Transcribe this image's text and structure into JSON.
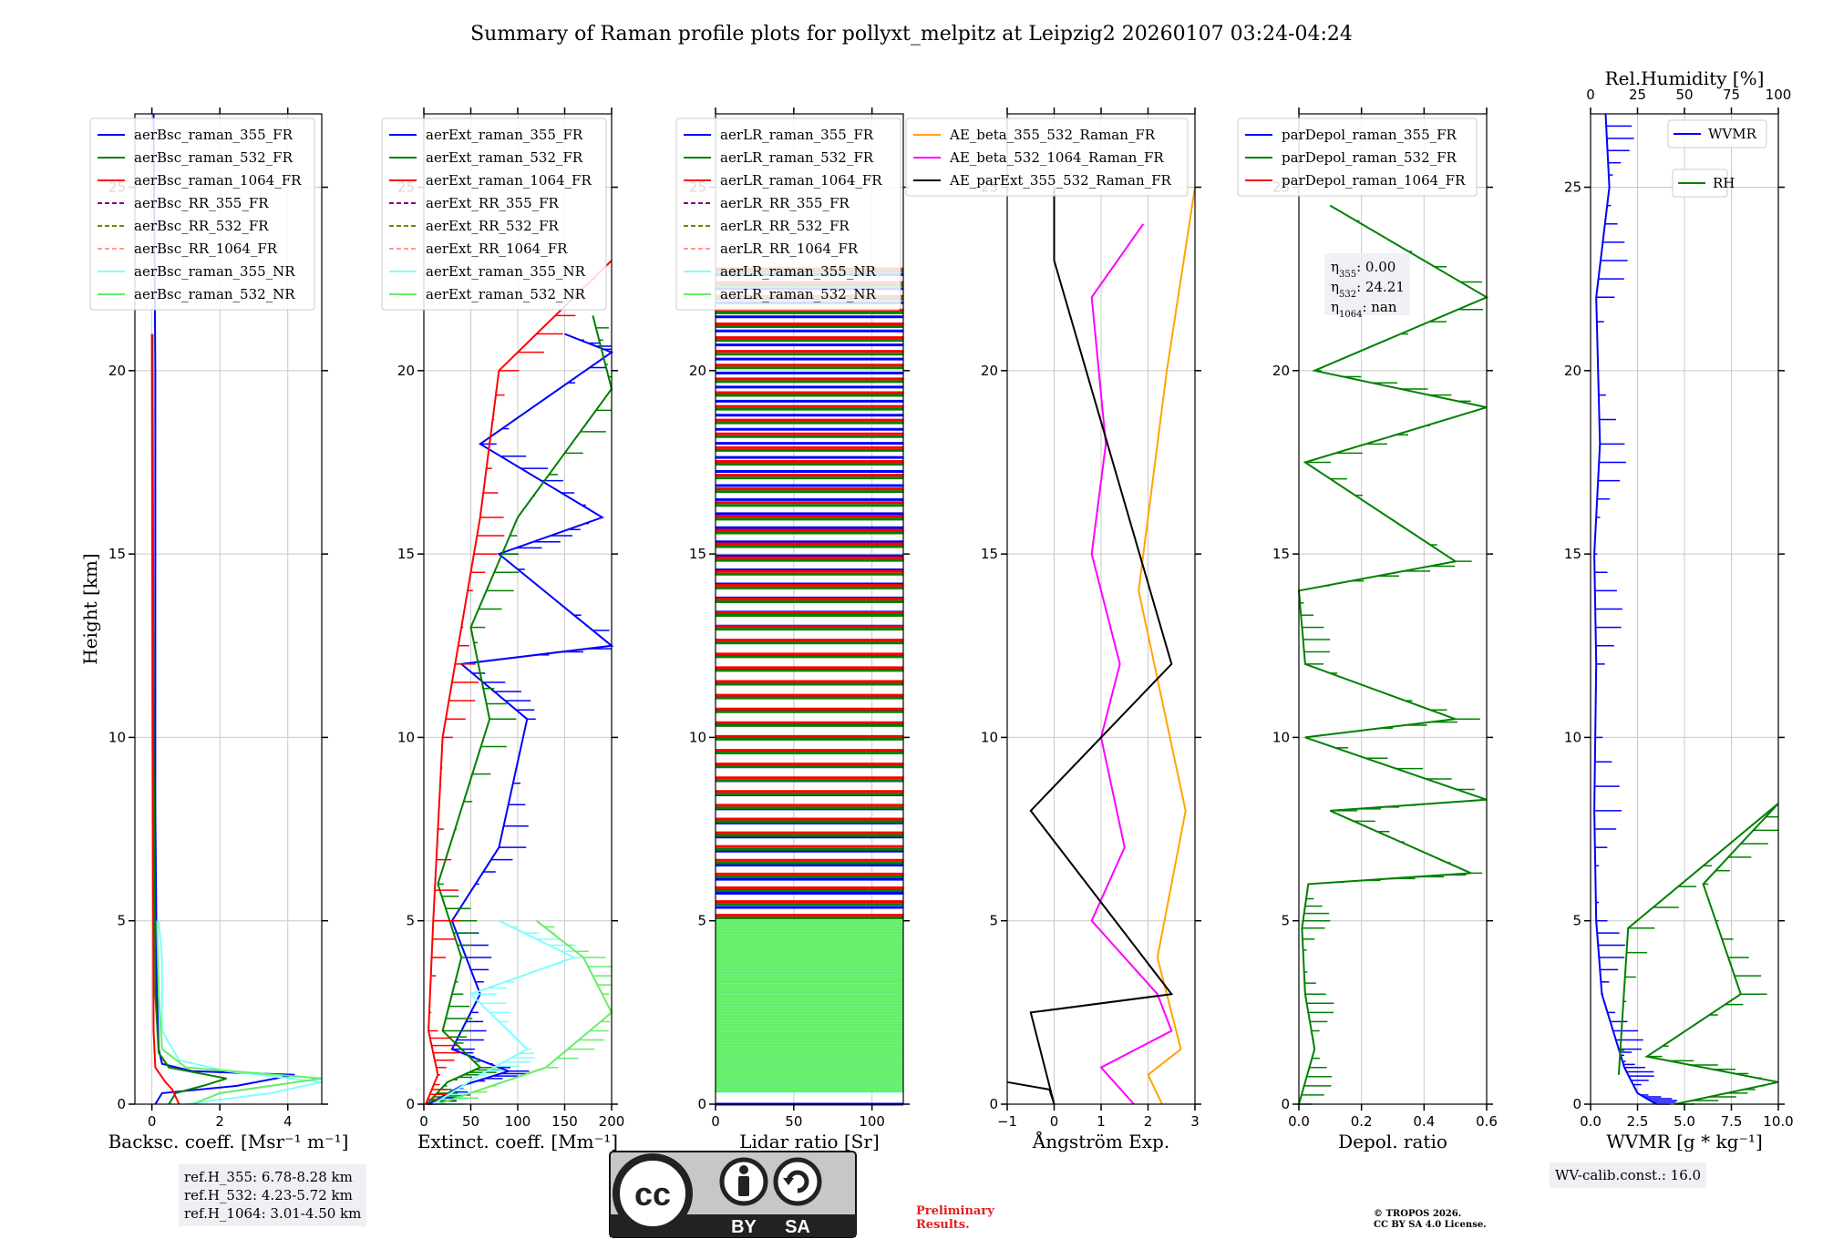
{
  "title": "Summary of Raman profile plots for pollyxt_melpitz at Leipzig2 20260107 03:24-04:24",
  "colors": {
    "blue": "#0000ff",
    "green": "#008000",
    "red": "#ff0000",
    "purple": "#800080",
    "olive": "#808000",
    "pink": "#ff9999",
    "cyan": "#7fffff",
    "lightgreen": "#66ee66",
    "orange": "#ffa500",
    "magenta": "#ff00ff",
    "black": "#000000"
  },
  "chart_data": [
    {
      "type": "line",
      "xlabel": "Backsc. coeff. [Msr⁻¹ m⁻¹]",
      "ylabel": "Height [km]",
      "xlim": [
        -0.5,
        5
      ],
      "ylim": [
        0,
        27
      ],
      "xticks": [
        "0",
        "2",
        "4"
      ],
      "xtick_values": [
        0,
        2,
        4
      ],
      "yticks": [
        "0",
        "5",
        "10",
        "15",
        "20",
        "25"
      ],
      "legend": [
        "aerBsc_raman_355_FR",
        "aerBsc_raman_532_FR",
        "aerBsc_raman_1064_FR",
        "aerBsc_RR_355_FR",
        "aerBsc_RR_532_FR",
        "aerBsc_RR_1064_FR",
        "aerBsc_raman_355_NR",
        "aerBsc_raman_532_NR"
      ],
      "series": [
        {
          "name": "aerBsc_raman_355_FR",
          "color": "blue",
          "points": [
            [
              0.1,
              0
            ],
            [
              0.3,
              0.3
            ],
            [
              2.5,
              0.5
            ],
            [
              4.2,
              0.8
            ],
            [
              1.2,
              0.9
            ],
            [
              0.3,
              1.1
            ],
            [
              0.2,
              1.5
            ],
            [
              0.15,
              3
            ],
            [
              0.1,
              8
            ],
            [
              0.1,
              20
            ],
            [
              0.05,
              27
            ]
          ]
        },
        {
          "name": "aerBsc_raman_532_FR",
          "color": "green",
          "points": [
            [
              0.5,
              0
            ],
            [
              0.7,
              0.3
            ],
            [
              1.5,
              0.5
            ],
            [
              2.2,
              0.7
            ],
            [
              0.5,
              1.0
            ],
            [
              0.2,
              1.4
            ],
            [
              0.1,
              3
            ],
            [
              0.05,
              10
            ],
            [
              0.02,
              21
            ]
          ]
        },
        {
          "name": "aerBsc_raman_1064_FR",
          "color": "red",
          "points": [
            [
              0.8,
              0
            ],
            [
              0.6,
              0.4
            ],
            [
              0.4,
              0.6
            ],
            [
              0.1,
              1.0
            ],
            [
              0.05,
              2
            ],
            [
              0.02,
              10
            ],
            [
              0.0,
              21
            ]
          ]
        },
        {
          "name": "aerBsc_raman_355_NR",
          "color": "cyan",
          "points": [
            [
              1.0,
              0
            ],
            [
              3.5,
              0.3
            ],
            [
              5.0,
              0.6
            ],
            [
              2.2,
              0.9
            ],
            [
              0.8,
              1.2
            ],
            [
              0.3,
              2
            ],
            [
              0.3,
              4
            ],
            [
              0.2,
              5
            ]
          ]
        },
        {
          "name": "aerBsc_raman_532_NR",
          "color": "lightgreen",
          "points": [
            [
              1.2,
              0
            ],
            [
              2.0,
              0.3
            ],
            [
              5.0,
              0.7
            ],
            [
              1.0,
              1.0
            ],
            [
              0.3,
              1.5
            ],
            [
              0.2,
              3
            ],
            [
              0.15,
              5
            ]
          ]
        }
      ],
      "info_lines": [
        "ref.H_355: 6.78-8.28 km",
        "ref.H_532: 4.23-5.72 km",
        "ref.H_1064: 3.01-4.50 km"
      ]
    },
    {
      "type": "line",
      "xlabel": "Extinct. coeff. [Mm⁻¹]",
      "xlim": [
        0,
        200
      ],
      "ylim": [
        0,
        27
      ],
      "xticks": [
        "0",
        "50",
        "100",
        "150",
        "200"
      ],
      "xtick_values": [
        0,
        50,
        100,
        150,
        200
      ],
      "yticks": [
        "0",
        "5",
        "10",
        "15",
        "20",
        "25"
      ],
      "legend": [
        "aerExt_raman_355_FR",
        "aerExt_raman_532_FR",
        "aerExt_raman_1064_FR",
        "aerExt_RR_355_FR",
        "aerExt_RR_532_FR",
        "aerExt_RR_1064_FR",
        "aerExt_raman_355_NR",
        "aerExt_raman_532_NR"
      ],
      "series": [
        {
          "name": "aerExt_raman_355_FR",
          "color": "blue",
          "points": [
            [
              5,
              0
            ],
            [
              40,
              0.5
            ],
            [
              90,
              0.9
            ],
            [
              30,
              1.5
            ],
            [
              60,
              3
            ],
            [
              30,
              5
            ],
            [
              80,
              7
            ],
            [
              110,
              10.5
            ],
            [
              40,
              12
            ],
            [
              200,
              12.5
            ],
            [
              80,
              15
            ],
            [
              190,
              16
            ],
            [
              60,
              18
            ],
            [
              200,
              20.5
            ],
            [
              150,
              21
            ]
          ]
        },
        {
          "name": "aerExt_raman_532_FR",
          "color": "green",
          "points": [
            [
              3,
              0
            ],
            [
              25,
              0.6
            ],
            [
              60,
              1.0
            ],
            [
              20,
              2
            ],
            [
              40,
              4
            ],
            [
              15,
              6
            ],
            [
              70,
              10.5
            ],
            [
              50,
              13
            ],
            [
              100,
              16
            ],
            [
              200,
              19.5
            ],
            [
              180,
              21.5
            ]
          ]
        },
        {
          "name": "aerExt_raman_1064_FR",
          "color": "red",
          "points": [
            [
              2,
              0
            ],
            [
              15,
              0.8
            ],
            [
              5,
              2
            ],
            [
              10,
              5
            ],
            [
              20,
              10
            ],
            [
              40,
              13
            ],
            [
              60,
              16
            ],
            [
              80,
              20
            ],
            [
              200,
              23
            ]
          ]
        },
        {
          "name": "aerExt_raman_355_NR",
          "color": "cyan",
          "points": [
            [
              10,
              0
            ],
            [
              60,
              0.8
            ],
            [
              110,
              1.5
            ],
            [
              50,
              3
            ],
            [
              160,
              4
            ],
            [
              80,
              5
            ]
          ]
        },
        {
          "name": "aerExt_raman_532_NR",
          "color": "lightgreen",
          "points": [
            [
              15,
              0
            ],
            [
              130,
              1
            ],
            [
              200,
              2.5
            ],
            [
              170,
              4
            ],
            [
              120,
              5
            ]
          ]
        }
      ]
    },
    {
      "type": "line",
      "xlabel": "Lidar ratio [Sr]",
      "xlim": [
        0,
        120
      ],
      "ylim": [
        0,
        27
      ],
      "xticks": [
        "0",
        "50",
        "100"
      ],
      "xtick_values": [
        0,
        50,
        100
      ],
      "yticks": [
        "0",
        "5",
        "10",
        "15",
        "20",
        "25"
      ],
      "legend": [
        "aerLR_raman_355_FR",
        "aerLR_raman_532_FR",
        "aerLR_raman_1064_FR",
        "aerLR_RR_355_FR",
        "aerLR_RR_532_FR",
        "aerLR_RR_1064_FR",
        "aerLR_raman_355_NR",
        "aerLR_raman_532_NR"
      ],
      "series": [
        {
          "name": "aerLR_raman_355_FR",
          "color": "blue",
          "range": [
            0,
            23
          ]
        },
        {
          "name": "aerLR_raman_532_FR",
          "color": "green",
          "range": [
            0.5,
            23
          ]
        },
        {
          "name": "aerLR_raman_1064_FR",
          "color": "red",
          "range": [
            0.5,
            23
          ]
        },
        {
          "name": "aerLR_raman_355_NR",
          "color": "cyan",
          "range": [
            0.3,
            5
          ]
        },
        {
          "name": "aerLR_raman_532_NR",
          "color": "lightgreen",
          "range": [
            0.3,
            5
          ]
        }
      ]
    },
    {
      "type": "line",
      "xlabel": "Ångström Exp.",
      "xlim": [
        -1,
        3
      ],
      "ylim": [
        0,
        27
      ],
      "xticks": [
        "−1",
        "0",
        "1",
        "2",
        "3"
      ],
      "xtick_values": [
        -1,
        0,
        1,
        2,
        3
      ],
      "yticks": [
        "0",
        "5",
        "10",
        "15",
        "20",
        "25"
      ],
      "legend": [
        "AE_beta_355_532_Raman_FR",
        "AE_beta_532_1064_Raman_FR",
        "AE_parExt_355_532_Raman_FR"
      ],
      "series": [
        {
          "name": "AE_beta_355_532_Raman_FR",
          "color": "orange",
          "points": [
            [
              2.3,
              0
            ],
            [
              2.0,
              0.8
            ],
            [
              2.7,
              1.5
            ],
            [
              2.2,
              4
            ],
            [
              2.8,
              8
            ],
            [
              1.8,
              14
            ],
            [
              2.4,
              20
            ],
            [
              3.0,
              25
            ]
          ]
        },
        {
          "name": "AE_beta_532_1064_Raman_FR",
          "color": "magenta",
          "points": [
            [
              1.7,
              0
            ],
            [
              1.0,
              1
            ],
            [
              2.5,
              2
            ],
            [
              2.2,
              3
            ],
            [
              0.8,
              5
            ],
            [
              1.5,
              7
            ],
            [
              1.0,
              10
            ],
            [
              1.4,
              12
            ],
            [
              0.8,
              15
            ],
            [
              1.1,
              18
            ],
            [
              0.8,
              22
            ],
            [
              1.9,
              24
            ]
          ]
        },
        {
          "name": "AE_parExt_355_532_Raman_FR",
          "color": "black",
          "points": [
            [
              -1,
              0.6
            ],
            [
              -0.1,
              0.4
            ],
            [
              0,
              0
            ],
            [
              -0.5,
              2.5
            ],
            [
              2.5,
              3
            ],
            [
              -0.5,
              8
            ],
            [
              2.5,
              12
            ],
            [
              0,
              23
            ],
            [
              0,
              25
            ]
          ]
        }
      ]
    },
    {
      "type": "line",
      "xlabel": "Depol. ratio",
      "xlim": [
        0,
        0.6
      ],
      "ylim": [
        0,
        27
      ],
      "xticks": [
        "0.0",
        "0.2",
        "0.4",
        "0.6"
      ],
      "xtick_values": [
        0,
        0.2,
        0.4,
        0.6
      ],
      "yticks": [
        "0",
        "5",
        "10",
        "15",
        "20",
        "25"
      ],
      "legend": [
        "parDepol_raman_355_FR",
        "parDepol_raman_532_FR",
        "parDepol_raman_1064_FR"
      ],
      "series": [
        {
          "name": "parDepol_raman_532_FR",
          "color": "green",
          "points": [
            [
              0.0,
              0
            ],
            [
              0.05,
              1.5
            ],
            [
              0.02,
              3
            ],
            [
              0.01,
              4.8
            ],
            [
              0.03,
              6
            ],
            [
              0.55,
              6.3
            ],
            [
              0.1,
              8
            ],
            [
              0.6,
              8.3
            ],
            [
              0.02,
              10
            ],
            [
              0.5,
              10.5
            ],
            [
              0.02,
              12
            ],
            [
              0.0,
              14
            ],
            [
              0.5,
              14.8
            ],
            [
              0.02,
              17.5
            ],
            [
              0.6,
              19
            ],
            [
              0.05,
              20
            ],
            [
              0.6,
              22
            ],
            [
              0.1,
              24.5
            ]
          ]
        }
      ],
      "annotation": [
        {
          "sym": "η",
          "sub": "355",
          "val": ": 0.00"
        },
        {
          "sym": "η",
          "sub": "532",
          "val": ": 24.21"
        },
        {
          "sym": "η",
          "sub": "1064",
          "val": ": nan"
        }
      ]
    },
    {
      "type": "line",
      "xlabel": "WVMR [g * kg⁻¹]",
      "x2label": "Rel.Humidity [%]",
      "xlim": [
        0,
        10
      ],
      "x2lim": [
        0,
        100
      ],
      "ylim": [
        0,
        27
      ],
      "xticks": [
        "0.0",
        "2.5",
        "5.0",
        "7.5",
        "10.0"
      ],
      "xtick_values": [
        0,
        2.5,
        5,
        7.5,
        10
      ],
      "x2ticks": [
        "0",
        "25",
        "50",
        "75",
        "100"
      ],
      "x2tick_values": [
        0,
        25,
        50,
        75,
        100
      ],
      "yticks": [
        "0",
        "5",
        "10",
        "15",
        "20",
        "25"
      ],
      "legend": [
        "WVMR",
        "RH"
      ],
      "series": [
        {
          "name": "WVMR",
          "color": "blue",
          "points": [
            [
              3.5,
              0
            ],
            [
              2.5,
              0.3
            ],
            [
              1.8,
              1.0
            ],
            [
              1.5,
              1.5
            ],
            [
              0.6,
              3
            ],
            [
              0.3,
              5
            ],
            [
              0.2,
              8
            ],
            [
              0.3,
              12
            ],
            [
              0.2,
              15
            ],
            [
              0.5,
              18
            ],
            [
              0.3,
              22
            ],
            [
              1.0,
              25
            ],
            [
              0.8,
              27
            ]
          ]
        },
        {
          "name": "RH",
          "color": "green",
          "points": [
            [
              45,
              0
            ],
            [
              100,
              0.6
            ],
            [
              30,
              1.3
            ],
            [
              80,
              3
            ],
            [
              60,
              6
            ],
            [
              100,
              8.2
            ],
            [
              20,
              4.8
            ],
            [
              15,
              0.8
            ]
          ]
        }
      ],
      "info_lines": [
        "WV-calib.const.: 16.0"
      ]
    }
  ],
  "footer": {
    "cc_left": "cc",
    "cc_by": "BY",
    "cc_sa": "SA",
    "prelim": [
      "Preliminary",
      "Results."
    ],
    "copyright": [
      "© TROPOS 2026.",
      "CC BY SA 4.0 License."
    ]
  }
}
